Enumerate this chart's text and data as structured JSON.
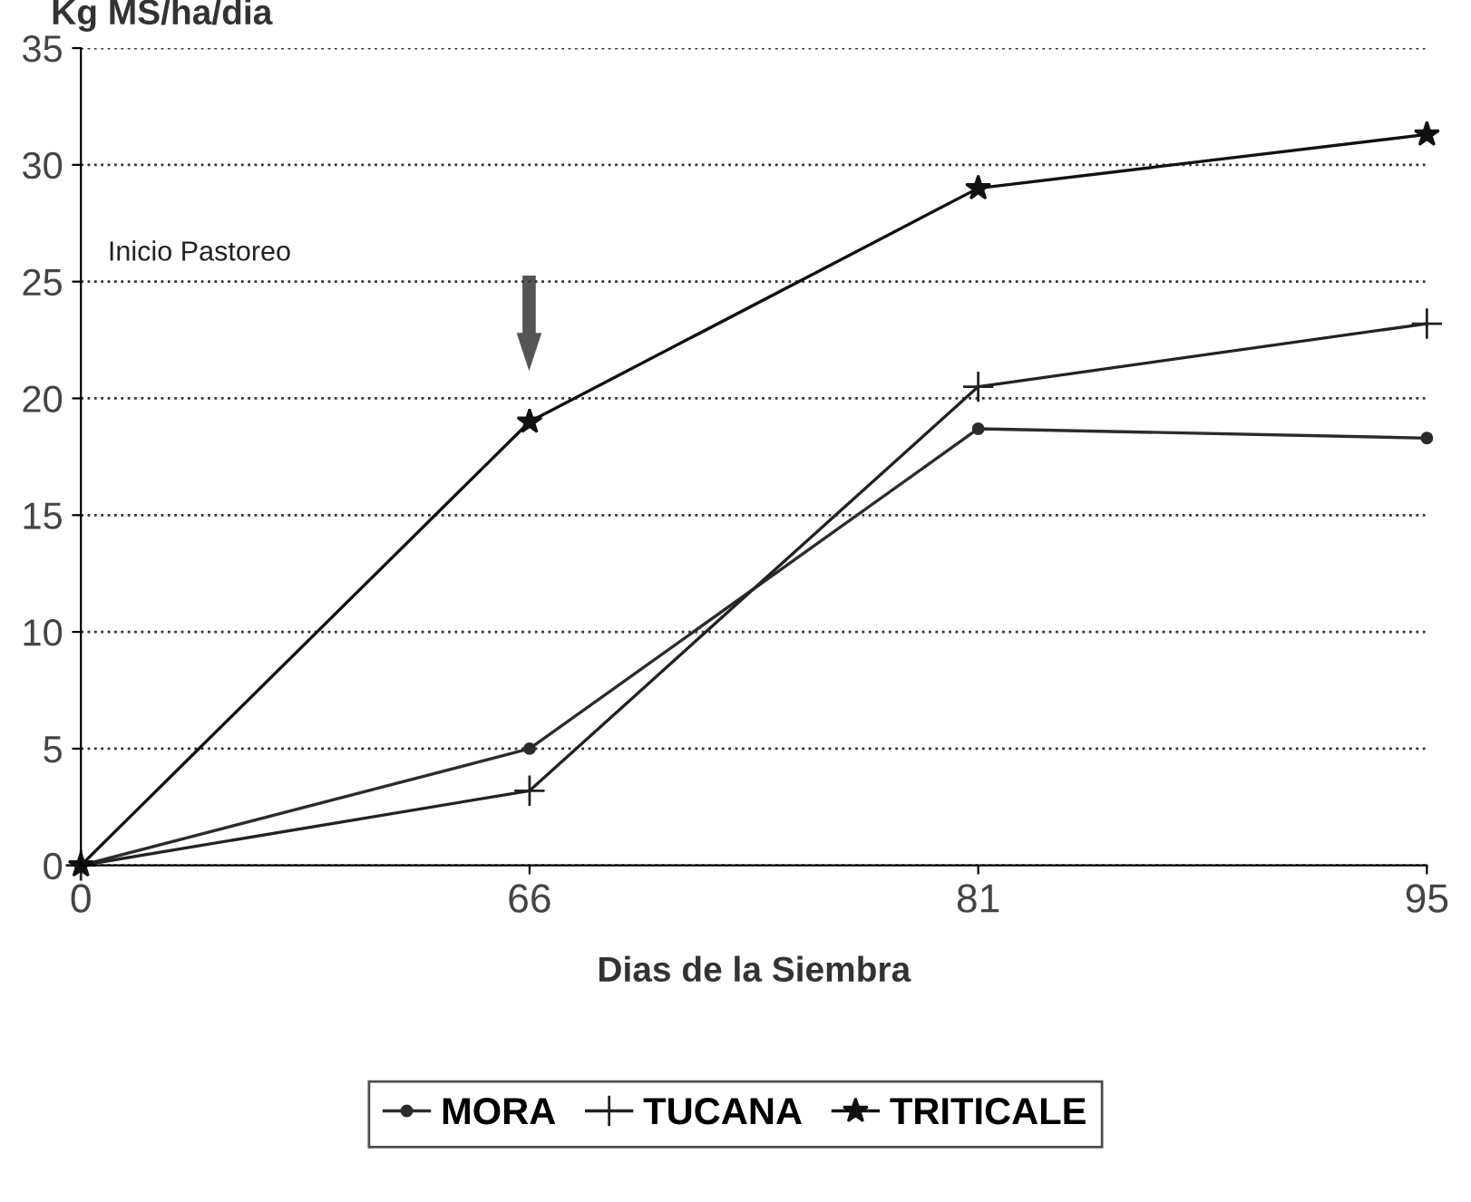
{
  "chart_data": {
    "type": "line",
    "ylabel": "Kg MS/ha/dia",
    "xlabel": "Dias de la Siembra",
    "categories": [
      "0",
      "66",
      "81",
      "95"
    ],
    "series": [
      {
        "name": "MORA",
        "color": "#2b2b2b",
        "values": [
          0,
          5,
          18.7,
          18.3
        ],
        "marker": "circle"
      },
      {
        "name": "TUCANA",
        "color": "#222222",
        "values": [
          0,
          3.2,
          20.5,
          23.2
        ],
        "marker": "cross"
      },
      {
        "name": "TRITICALE",
        "color": "#111111",
        "values": [
          0,
          19,
          29,
          31.3
        ],
        "marker": "star"
      }
    ],
    "ylim": [
      0,
      35
    ],
    "yticks": [
      0,
      5,
      10,
      15,
      20,
      25,
      30,
      35
    ],
    "grid": "y",
    "legend": "bottom",
    "line_style": "solid",
    "annotations": [
      "Inicio Pastoreo"
    ]
  }
}
